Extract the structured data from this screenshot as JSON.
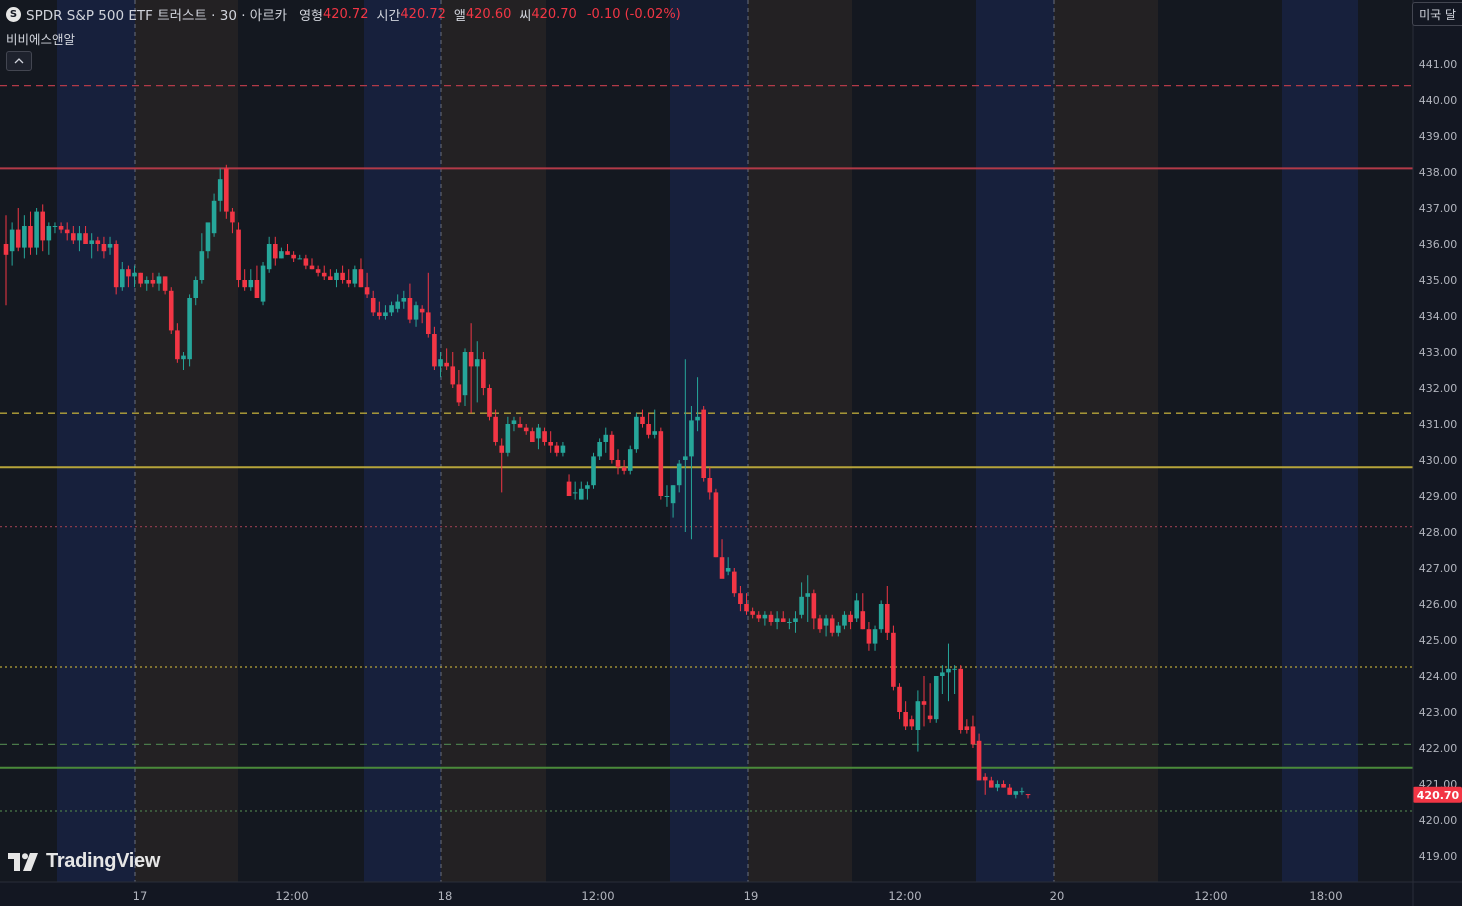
{
  "legend": {
    "symbol_badge": "S",
    "title": "SPDR S&P 500 ETF 트러스트 · 30 · 아르카",
    "open_label": "영형",
    "open_value": "420.72",
    "high_label": "시간",
    "high_value": "420.72",
    "low_label": "앨",
    "low_value": "420.60",
    "close_label": "씨",
    "close_value": "420.70",
    "change": "-0.10 (-0.02%)"
  },
  "indicator_label": "비비에스앤알",
  "collapse_icon": "chevron-up-icon",
  "market_button": "미국 달",
  "branding": "TradingView",
  "colors": {
    "up": "#26a69a",
    "down": "#f23645",
    "background": "#131722",
    "band_blue": "#182242",
    "band_brown": "#262325",
    "band_dark": "#141820"
  },
  "chart_data": {
    "type": "candlestick",
    "ylim": [
      418.4,
      442.0
    ],
    "y_ticks": [
      "441.00",
      "440.00",
      "439.00",
      "438.00",
      "437.00",
      "436.00",
      "435.00",
      "434.00",
      "433.00",
      "432.00",
      "431.00",
      "430.00",
      "429.00",
      "428.00",
      "427.00",
      "426.00",
      "425.00",
      "424.00",
      "423.00",
      "422.00",
      "421.00",
      "420.00",
      "419.00"
    ],
    "x_ticks": [
      "17",
      "12:00",
      "18",
      "12:00",
      "19",
      "12:00",
      "20",
      "12:00",
      "18:00"
    ],
    "last_price": "420.70",
    "levels": [
      {
        "price": 440.4,
        "color": "#b23a48",
        "style": "dashed"
      },
      {
        "price": 438.1,
        "color": "#b23a48",
        "style": "solid"
      },
      {
        "price": 431.3,
        "color": "#b6a43a",
        "style": "dashed"
      },
      {
        "price": 429.8,
        "color": "#b6a43a",
        "style": "solid"
      },
      {
        "price": 428.15,
        "color": "#8a3a4a",
        "style": "dotted"
      },
      {
        "price": 424.25,
        "color": "#b6a43a",
        "style": "dotted"
      },
      {
        "price": 422.1,
        "color": "#4a7a4a",
        "style": "dashed"
      },
      {
        "price": 421.45,
        "color": "#4a8a3a",
        "style": "solid"
      },
      {
        "price": 420.25,
        "color": "#4a7a4a",
        "style": "dotted"
      }
    ],
    "candles": [
      {
        "o": 436.0,
        "h": 436.8,
        "l": 434.3,
        "c": 435.7
      },
      {
        "o": 435.8,
        "h": 436.6,
        "l": 435.4,
        "c": 436.4
      },
      {
        "o": 436.4,
        "h": 437.0,
        "l": 435.8,
        "c": 435.9
      },
      {
        "o": 435.9,
        "h": 436.8,
        "l": 435.6,
        "c": 436.5
      },
      {
        "o": 436.5,
        "h": 436.9,
        "l": 435.7,
        "c": 435.9
      },
      {
        "o": 435.9,
        "h": 437.0,
        "l": 435.7,
        "c": 436.9
      },
      {
        "o": 436.9,
        "h": 437.1,
        "l": 435.8,
        "c": 436.1
      },
      {
        "o": 436.1,
        "h": 436.6,
        "l": 435.7,
        "c": 436.5
      },
      {
        "o": 436.5,
        "h": 436.6,
        "l": 436.3,
        "c": 436.5
      },
      {
        "o": 436.5,
        "h": 436.6,
        "l": 436.3,
        "c": 436.4
      },
      {
        "o": 436.4,
        "h": 436.6,
        "l": 436.1,
        "c": 436.3
      },
      {
        "o": 436.3,
        "h": 436.5,
        "l": 436.0,
        "c": 436.1
      },
      {
        "o": 436.1,
        "h": 436.5,
        "l": 435.8,
        "c": 436.3
      },
      {
        "o": 436.3,
        "h": 436.5,
        "l": 436.0,
        "c": 436.0
      },
      {
        "o": 436.0,
        "h": 436.3,
        "l": 435.6,
        "c": 436.1
      },
      {
        "o": 436.1,
        "h": 436.2,
        "l": 435.8,
        "c": 436.0
      },
      {
        "o": 436.0,
        "h": 436.2,
        "l": 435.6,
        "c": 435.8
      },
      {
        "o": 435.9,
        "h": 436.2,
        "l": 435.7,
        "c": 436.0
      },
      {
        "o": 436.0,
        "h": 436.1,
        "l": 434.6,
        "c": 434.8
      },
      {
        "o": 434.8,
        "h": 435.5,
        "l": 434.7,
        "c": 435.3
      },
      {
        "o": 435.3,
        "h": 435.4,
        "l": 434.8,
        "c": 435.1
      },
      {
        "o": 435.1,
        "h": 435.4,
        "l": 434.8,
        "c": 435.2
      },
      {
        "o": 435.2,
        "h": 435.2,
        "l": 434.8,
        "c": 434.9
      },
      {
        "o": 434.9,
        "h": 435.1,
        "l": 434.7,
        "c": 435.0
      },
      {
        "o": 435.0,
        "h": 435.2,
        "l": 434.8,
        "c": 434.9
      },
      {
        "o": 434.9,
        "h": 435.2,
        "l": 434.7,
        "c": 435.1
      },
      {
        "o": 435.1,
        "h": 435.1,
        "l": 434.6,
        "c": 434.7
      },
      {
        "o": 434.7,
        "h": 434.8,
        "l": 433.5,
        "c": 433.6
      },
      {
        "o": 433.6,
        "h": 433.8,
        "l": 432.7,
        "c": 432.8
      },
      {
        "o": 432.8,
        "h": 433.0,
        "l": 432.5,
        "c": 432.9
      },
      {
        "o": 432.8,
        "h": 434.6,
        "l": 432.6,
        "c": 434.5
      },
      {
        "o": 434.5,
        "h": 435.1,
        "l": 434.3,
        "c": 435.0
      },
      {
        "o": 435.0,
        "h": 436.3,
        "l": 434.9,
        "c": 435.8
      },
      {
        "o": 435.8,
        "h": 436.4,
        "l": 435.6,
        "c": 436.6
      },
      {
        "o": 436.3,
        "h": 437.4,
        "l": 436.2,
        "c": 437.2
      },
      {
        "o": 437.2,
        "h": 438.1,
        "l": 436.9,
        "c": 437.8
      },
      {
        "o": 438.1,
        "h": 438.2,
        "l": 436.7,
        "c": 436.9
      },
      {
        "o": 436.9,
        "h": 437.0,
        "l": 436.3,
        "c": 436.6
      },
      {
        "o": 436.4,
        "h": 436.6,
        "l": 434.8,
        "c": 435.0
      },
      {
        "o": 435.0,
        "h": 435.3,
        "l": 434.7,
        "c": 434.8
      },
      {
        "o": 434.8,
        "h": 435.3,
        "l": 434.7,
        "c": 435.0
      },
      {
        "o": 435.0,
        "h": 435.4,
        "l": 434.5,
        "c": 434.5
      },
      {
        "o": 434.4,
        "h": 435.5,
        "l": 434.3,
        "c": 435.4
      },
      {
        "o": 435.3,
        "h": 436.2,
        "l": 435.2,
        "c": 436.0
      },
      {
        "o": 436.0,
        "h": 436.2,
        "l": 435.4,
        "c": 435.6
      },
      {
        "o": 435.6,
        "h": 435.9,
        "l": 435.6,
        "c": 435.8
      },
      {
        "o": 435.8,
        "h": 436.0,
        "l": 435.7,
        "c": 435.7
      },
      {
        "o": 435.7,
        "h": 435.8,
        "l": 435.5,
        "c": 435.6
      },
      {
        "o": 435.6,
        "h": 435.7,
        "l": 435.6,
        "c": 435.6
      },
      {
        "o": 435.6,
        "h": 435.7,
        "l": 435.3,
        "c": 435.4
      },
      {
        "o": 435.4,
        "h": 435.6,
        "l": 435.3,
        "c": 435.3
      },
      {
        "o": 435.3,
        "h": 435.4,
        "l": 435.1,
        "c": 435.2
      },
      {
        "o": 435.2,
        "h": 435.4,
        "l": 435.0,
        "c": 435.1
      },
      {
        "o": 435.1,
        "h": 435.3,
        "l": 435.0,
        "c": 435.0
      },
      {
        "o": 435.0,
        "h": 435.3,
        "l": 434.8,
        "c": 435.2
      },
      {
        "o": 435.2,
        "h": 435.4,
        "l": 434.9,
        "c": 435.0
      },
      {
        "o": 435.0,
        "h": 435.3,
        "l": 434.8,
        "c": 434.9
      },
      {
        "o": 434.9,
        "h": 435.4,
        "l": 434.8,
        "c": 435.3
      },
      {
        "o": 435.3,
        "h": 435.6,
        "l": 434.8,
        "c": 434.8
      },
      {
        "o": 434.8,
        "h": 435.2,
        "l": 434.5,
        "c": 434.6
      },
      {
        "o": 434.5,
        "h": 434.7,
        "l": 434.0,
        "c": 434.1
      },
      {
        "o": 434.1,
        "h": 434.4,
        "l": 433.9,
        "c": 434.0
      },
      {
        "o": 434.0,
        "h": 434.3,
        "l": 433.9,
        "c": 434.1
      },
      {
        "o": 434.1,
        "h": 434.4,
        "l": 434.0,
        "c": 434.3
      },
      {
        "o": 434.2,
        "h": 434.6,
        "l": 434.1,
        "c": 434.4
      },
      {
        "o": 434.4,
        "h": 434.7,
        "l": 434.2,
        "c": 434.5
      },
      {
        "o": 434.5,
        "h": 434.9,
        "l": 433.8,
        "c": 433.9
      },
      {
        "o": 433.9,
        "h": 434.4,
        "l": 433.7,
        "c": 434.3
      },
      {
        "o": 434.2,
        "h": 434.3,
        "l": 433.8,
        "c": 434.1
      },
      {
        "o": 434.1,
        "h": 435.2,
        "l": 433.4,
        "c": 433.5
      },
      {
        "o": 433.5,
        "h": 433.7,
        "l": 432.5,
        "c": 432.6
      },
      {
        "o": 432.6,
        "h": 433.0,
        "l": 432.3,
        "c": 432.8
      },
      {
        "o": 432.7,
        "h": 433.1,
        "l": 432.5,
        "c": 432.6
      },
      {
        "o": 432.6,
        "h": 433.0,
        "l": 432.0,
        "c": 432.1
      },
      {
        "o": 432.1,
        "h": 432.5,
        "l": 431.5,
        "c": 431.6
      },
      {
        "o": 431.8,
        "h": 433.1,
        "l": 431.5,
        "c": 433.0
      },
      {
        "o": 433.0,
        "h": 433.8,
        "l": 431.3,
        "c": 432.6
      },
      {
        "o": 432.6,
        "h": 433.3,
        "l": 431.6,
        "c": 432.8
      },
      {
        "o": 432.8,
        "h": 433.0,
        "l": 431.8,
        "c": 432.0
      },
      {
        "o": 432.0,
        "h": 432.1,
        "l": 431.1,
        "c": 431.2
      },
      {
        "o": 431.2,
        "h": 431.4,
        "l": 430.4,
        "c": 430.5
      },
      {
        "o": 430.4,
        "h": 430.6,
        "l": 429.1,
        "c": 430.2
      },
      {
        "o": 430.2,
        "h": 431.2,
        "l": 430.1,
        "c": 431.0
      },
      {
        "o": 431.0,
        "h": 431.2,
        "l": 430.8,
        "c": 431.1
      },
      {
        "o": 431.0,
        "h": 431.2,
        "l": 430.9,
        "c": 430.9
      },
      {
        "o": 430.9,
        "h": 431.0,
        "l": 430.7,
        "c": 430.8
      },
      {
        "o": 430.8,
        "h": 430.9,
        "l": 430.5,
        "c": 430.5
      },
      {
        "o": 430.6,
        "h": 431.0,
        "l": 430.3,
        "c": 430.9
      },
      {
        "o": 430.8,
        "h": 430.9,
        "l": 430.4,
        "c": 430.5
      },
      {
        "o": 430.5,
        "h": 430.8,
        "l": 430.2,
        "c": 430.4
      },
      {
        "o": 430.4,
        "h": 430.5,
        "l": 430.1,
        "c": 430.2
      },
      {
        "o": 430.2,
        "h": 430.5,
        "l": 430.1,
        "c": 430.4
      },
      {
        "o": 429.4,
        "h": 429.6,
        "l": 429.0,
        "c": 429.0
      },
      {
        "o": 429.1,
        "h": 429.4,
        "l": 428.9,
        "c": 429.1
      },
      {
        "o": 428.9,
        "h": 429.4,
        "l": 428.9,
        "c": 429.2
      },
      {
        "o": 429.2,
        "h": 429.4,
        "l": 428.9,
        "c": 429.3
      },
      {
        "o": 429.3,
        "h": 430.2,
        "l": 429.2,
        "c": 430.1
      },
      {
        "o": 430.1,
        "h": 430.6,
        "l": 430.0,
        "c": 430.5
      },
      {
        "o": 430.5,
        "h": 430.9,
        "l": 430.2,
        "c": 430.7
      },
      {
        "o": 430.7,
        "h": 430.8,
        "l": 429.9,
        "c": 430.0
      },
      {
        "o": 430.0,
        "h": 430.3,
        "l": 429.6,
        "c": 429.8
      },
      {
        "o": 429.8,
        "h": 430.0,
        "l": 429.6,
        "c": 429.7
      },
      {
        "o": 429.7,
        "h": 430.4,
        "l": 429.6,
        "c": 430.3
      },
      {
        "o": 430.3,
        "h": 431.3,
        "l": 430.2,
        "c": 431.2
      },
      {
        "o": 431.2,
        "h": 431.4,
        "l": 430.9,
        "c": 431.0
      },
      {
        "o": 431.0,
        "h": 431.3,
        "l": 430.6,
        "c": 430.7
      },
      {
        "o": 430.7,
        "h": 431.4,
        "l": 430.6,
        "c": 430.8
      },
      {
        "o": 430.8,
        "h": 430.9,
        "l": 428.9,
        "c": 429.0
      },
      {
        "o": 429.0,
        "h": 429.3,
        "l": 428.7,
        "c": 429.0
      },
      {
        "o": 428.8,
        "h": 429.3,
        "l": 428.4,
        "c": 429.3
      },
      {
        "o": 429.3,
        "h": 430.0,
        "l": 429.1,
        "c": 429.9
      },
      {
        "o": 430.0,
        "h": 432.8,
        "l": 428.0,
        "c": 430.1
      },
      {
        "o": 430.1,
        "h": 431.5,
        "l": 427.8,
        "c": 431.1
      },
      {
        "o": 431.1,
        "h": 432.3,
        "l": 430.8,
        "c": 431.2
      },
      {
        "o": 431.4,
        "h": 431.5,
        "l": 429.4,
        "c": 429.5
      },
      {
        "o": 429.5,
        "h": 429.8,
        "l": 428.9,
        "c": 429.1
      },
      {
        "o": 429.1,
        "h": 429.2,
        "l": 427.3,
        "c": 427.3
      },
      {
        "o": 427.3,
        "h": 427.8,
        "l": 426.8,
        "c": 426.7
      },
      {
        "o": 426.9,
        "h": 427.3,
        "l": 426.8,
        "c": 427.0
      },
      {
        "o": 426.9,
        "h": 427.0,
        "l": 426.2,
        "c": 426.3
      },
      {
        "o": 426.3,
        "h": 426.5,
        "l": 425.8,
        "c": 426.0
      },
      {
        "o": 426.0,
        "h": 426.3,
        "l": 425.7,
        "c": 425.8
      },
      {
        "o": 425.8,
        "h": 425.9,
        "l": 425.6,
        "c": 425.7
      },
      {
        "o": 425.7,
        "h": 425.8,
        "l": 425.5,
        "c": 425.6
      },
      {
        "o": 425.6,
        "h": 425.8,
        "l": 425.4,
        "c": 425.7
      },
      {
        "o": 425.7,
        "h": 425.8,
        "l": 425.4,
        "c": 425.5
      },
      {
        "o": 425.5,
        "h": 425.8,
        "l": 425.3,
        "c": 425.6
      },
      {
        "o": 425.6,
        "h": 425.8,
        "l": 425.5,
        "c": 425.5
      },
      {
        "o": 425.5,
        "h": 425.6,
        "l": 425.3,
        "c": 425.5
      },
      {
        "o": 425.5,
        "h": 425.8,
        "l": 425.2,
        "c": 425.6
      },
      {
        "o": 425.7,
        "h": 426.6,
        "l": 425.6,
        "c": 426.2
      },
      {
        "o": 426.2,
        "h": 426.8,
        "l": 425.5,
        "c": 426.3
      },
      {
        "o": 426.3,
        "h": 426.4,
        "l": 425.3,
        "c": 425.6
      },
      {
        "o": 425.6,
        "h": 425.7,
        "l": 425.2,
        "c": 425.3
      },
      {
        "o": 425.4,
        "h": 425.7,
        "l": 425.1,
        "c": 425.6
      },
      {
        "o": 425.6,
        "h": 425.7,
        "l": 425.1,
        "c": 425.2
      },
      {
        "o": 425.2,
        "h": 425.5,
        "l": 425.1,
        "c": 425.4
      },
      {
        "o": 425.4,
        "h": 425.8,
        "l": 425.3,
        "c": 425.7
      },
      {
        "o": 425.7,
        "h": 425.8,
        "l": 425.3,
        "c": 425.5
      },
      {
        "o": 425.6,
        "h": 426.3,
        "l": 425.5,
        "c": 426.1
      },
      {
        "o": 425.8,
        "h": 426.3,
        "l": 425.3,
        "c": 425.3
      },
      {
        "o": 425.3,
        "h": 425.5,
        "l": 424.7,
        "c": 424.9
      },
      {
        "o": 424.9,
        "h": 425.4,
        "l": 424.7,
        "c": 425.3
      },
      {
        "o": 425.3,
        "h": 426.1,
        "l": 425.2,
        "c": 426.0
      },
      {
        "o": 426.0,
        "h": 426.5,
        "l": 425.0,
        "c": 425.2
      },
      {
        "o": 425.2,
        "h": 425.4,
        "l": 423.6,
        "c": 423.7
      },
      {
        "o": 423.7,
        "h": 423.8,
        "l": 422.8,
        "c": 423.0
      },
      {
        "o": 423.0,
        "h": 423.3,
        "l": 422.5,
        "c": 422.6
      },
      {
        "o": 422.8,
        "h": 422.9,
        "l": 422.5,
        "c": 422.6
      },
      {
        "o": 422.5,
        "h": 423.6,
        "l": 421.9,
        "c": 423.3
      },
      {
        "o": 423.3,
        "h": 424.0,
        "l": 422.6,
        "c": 423.2
      },
      {
        "o": 422.9,
        "h": 423.8,
        "l": 422.7,
        "c": 422.8
      },
      {
        "o": 422.8,
        "h": 424.0,
        "l": 422.7,
        "c": 424.0
      },
      {
        "o": 424.0,
        "h": 424.3,
        "l": 423.5,
        "c": 424.1
      },
      {
        "o": 424.1,
        "h": 424.9,
        "l": 423.3,
        "c": 424.2
      },
      {
        "o": 424.2,
        "h": 424.3,
        "l": 423.5,
        "c": 424.2
      },
      {
        "o": 424.2,
        "h": 424.3,
        "l": 422.4,
        "c": 422.5
      },
      {
        "o": 422.6,
        "h": 422.8,
        "l": 422.4,
        "c": 422.5
      },
      {
        "o": 422.6,
        "h": 422.9,
        "l": 422.0,
        "c": 422.1
      },
      {
        "o": 422.2,
        "h": 422.4,
        "l": 421.1,
        "c": 421.1
      },
      {
        "o": 421.2,
        "h": 421.3,
        "l": 420.7,
        "c": 421.1
      },
      {
        "o": 421.1,
        "h": 421.2,
        "l": 420.9,
        "c": 420.9
      },
      {
        "o": 420.9,
        "h": 421.1,
        "l": 420.8,
        "c": 421.0
      },
      {
        "o": 421.0,
        "h": 421.1,
        "l": 420.9,
        "c": 420.9
      },
      {
        "o": 420.9,
        "h": 421.0,
        "l": 420.7,
        "c": 420.7
      },
      {
        "o": 420.7,
        "h": 420.8,
        "l": 420.6,
        "c": 420.8
      },
      {
        "o": 420.8,
        "h": 420.9,
        "l": 420.7,
        "c": 420.8
      },
      {
        "o": 420.72,
        "h": 420.72,
        "l": 420.6,
        "c": 420.7
      }
    ]
  }
}
